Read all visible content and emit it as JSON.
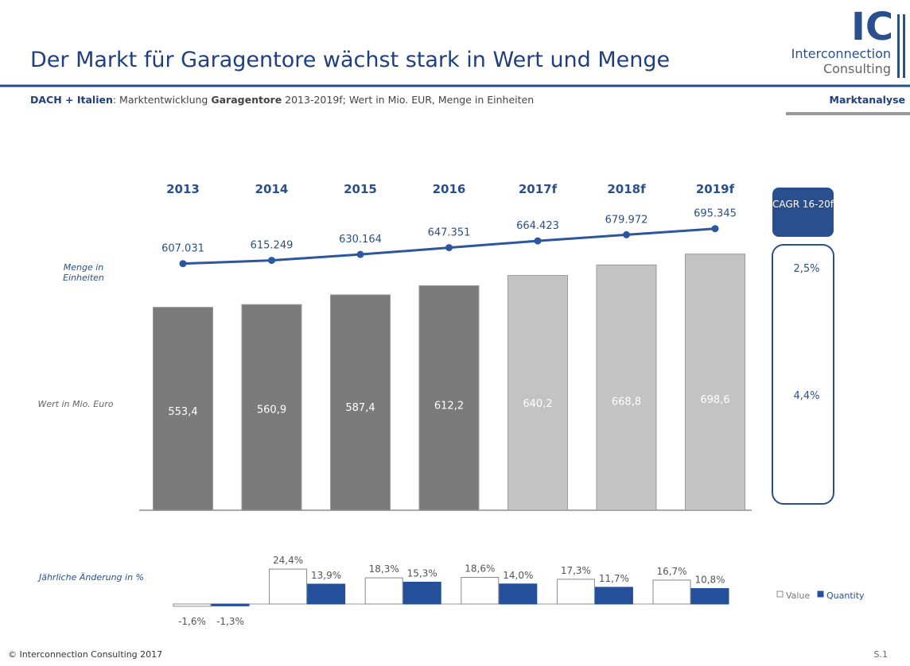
{
  "header": {
    "title": "Der Markt für Garagentore wächst stark in Wert und Menge",
    "subtitle": [
      "DACH + Italien",
      ": Marktentwicklung ",
      "Garagentore",
      " 2013-2019f; Wert in Mio. EUR, Menge in Einheiten"
    ],
    "section": "Marktanalyse",
    "logo": {
      "mark": "IC",
      "line1": "Interconnection",
      "line2": "Consulting"
    }
  },
  "chart_data": [
    {
      "type": "bar",
      "ylabel": "Wert in Mio. Euro",
      "categories": [
        "2013",
        "2014",
        "2015",
        "2016",
        "2017f",
        "2018f",
        "2019f"
      ],
      "values": [
        553.4,
        560.9,
        587.4,
        612.2,
        640.2,
        668.8,
        698.6
      ],
      "value_labels": [
        "553,4",
        "560,9",
        "587,4",
        "612,2",
        "640,2",
        "668,8",
        "698,6"
      ],
      "colors": [
        "#7b7b7b",
        "#7b7b7b",
        "#7b7b7b",
        "#7b7b7b",
        "#c3c3c3",
        "#c3c3c3",
        "#c3c3c3"
      ]
    },
    {
      "type": "line",
      "ylabel": "Menge in Einheiten",
      "color": "#2a579e",
      "values": [
        607031,
        615249,
        630164,
        647351,
        664423,
        679972,
        695345
      ],
      "value_labels": [
        "607.031",
        "615.249",
        "630.164",
        "647.351",
        "664.423",
        "679.972",
        "695.345"
      ]
    },
    {
      "type": "bar",
      "ylabel": "Jährliche Änderung in %",
      "series": [
        {
          "name": "Value",
          "color": "#ffffff",
          "values": [
            -1.6,
            24.4,
            18.3,
            18.6,
            17.3,
            16.7
          ],
          "value_labels": [
            "-1,6%",
            "24,4%",
            "18,3%",
            "18,6%",
            "17,3%",
            "16,7%"
          ]
        },
        {
          "name": "Quantity",
          "color": "#234f9b",
          "values": [
            -1.3,
            13.9,
            15.3,
            14.0,
            11.7,
            10.8
          ],
          "value_labels": [
            "-1,3%",
            "13,9%",
            "15,3%",
            "14,0%",
            "11,7%",
            "10,8%"
          ]
        }
      ]
    }
  ],
  "cagr": {
    "title": "CAGR 16-20f",
    "values": [
      2.5,
      4.4
    ],
    "value_labels": [
      "2,5%",
      "4,4%"
    ]
  },
  "footer": {
    "copyright": "© Interconnection Consulting 2017",
    "page": "S.1"
  }
}
